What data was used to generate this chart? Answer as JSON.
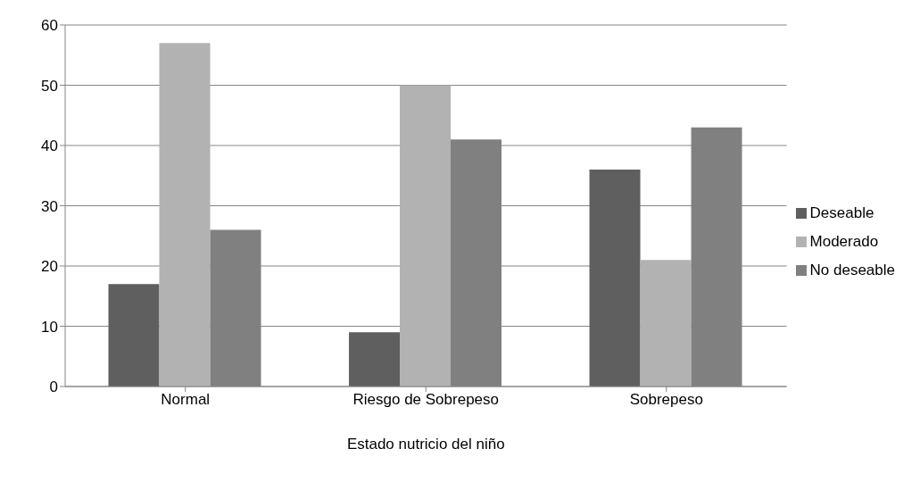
{
  "chart_data": {
    "type": "bar",
    "xlabel": "Estado nutricio del niño",
    "categories": [
      "Normal",
      "Riesgo de Sobrepeso",
      "Sobrepeso"
    ],
    "series": [
      {
        "name": "Deseable",
        "color": "#5f5f5f",
        "values": [
          17,
          9,
          36
        ]
      },
      {
        "name": "Moderado",
        "color": "#b2b2b2",
        "values": [
          57,
          50,
          21
        ]
      },
      {
        "name": "No deseable",
        "color": "#808080",
        "values": [
          26,
          41,
          43
        ]
      }
    ],
    "ylim": [
      0,
      60
    ],
    "yticks": [
      0,
      10,
      20,
      30,
      40,
      50,
      60
    ],
    "grid": "y",
    "legend": "right"
  }
}
